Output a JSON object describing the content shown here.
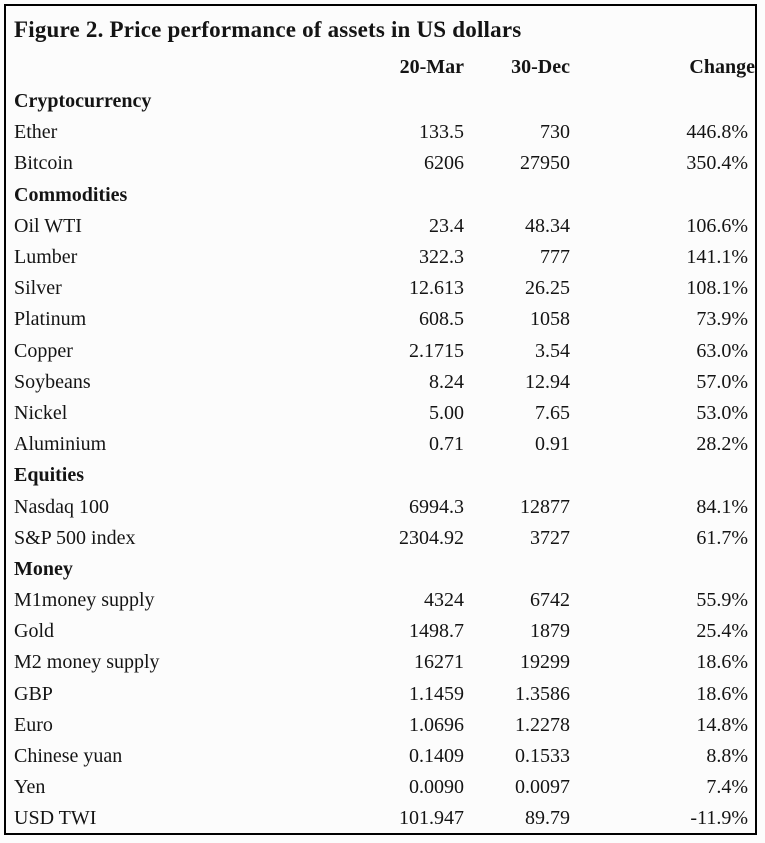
{
  "title": "Figure 2. Price performance of assets in US dollars",
  "columns": {
    "asset": "",
    "col1": "20-Mar",
    "col2": "30-Dec",
    "col3": "Change"
  },
  "sections": [
    {
      "name": "Cryptocurrency",
      "rows": [
        {
          "asset": "Ether",
          "mar20": "133.5",
          "dec30": "730",
          "change": "446.8%"
        },
        {
          "asset": "Bitcoin",
          "mar20": "6206",
          "dec30": "27950",
          "change": "350.4%"
        }
      ]
    },
    {
      "name": "Commodities",
      "rows": [
        {
          "asset": "Oil WTI",
          "mar20": "23.4",
          "dec30": "48.34",
          "change": "106.6%"
        },
        {
          "asset": "Lumber",
          "mar20": "322.3",
          "dec30": "777",
          "change": "141.1%"
        },
        {
          "asset": "Silver",
          "mar20": "12.613",
          "dec30": "26.25",
          "change": "108.1%"
        },
        {
          "asset": "Platinum",
          "mar20": "608.5",
          "dec30": "1058",
          "change": "73.9%"
        },
        {
          "asset": "Copper",
          "mar20": "2.1715",
          "dec30": "3.54",
          "change": "63.0%"
        },
        {
          "asset": "Soybeans",
          "mar20": "8.24",
          "dec30": "12.94",
          "change": "57.0%"
        },
        {
          "asset": "Nickel",
          "mar20": "5.00",
          "dec30": "7.65",
          "change": "53.0%"
        },
        {
          "asset": "Aluminium",
          "mar20": "0.71",
          "dec30": "0.91",
          "change": "28.2%"
        }
      ]
    },
    {
      "name": "Equities",
      "rows": [
        {
          "asset": "Nasdaq 100",
          "mar20": "6994.3",
          "dec30": "12877",
          "change": "84.1%"
        },
        {
          "asset": "S&P 500 index",
          "mar20": "2304.92",
          "dec30": "3727",
          "change": "61.7%"
        }
      ]
    },
    {
      "name": "Money",
      "rows": [
        {
          "asset": "M1money supply",
          "mar20": "4324",
          "dec30": "6742",
          "change": "55.9%"
        },
        {
          "asset": "Gold",
          "mar20": "1498.7",
          "dec30": "1879",
          "change": "25.4%"
        },
        {
          "asset": "M2 money supply",
          "mar20": "16271",
          "dec30": "19299",
          "change": "18.6%"
        },
        {
          "asset": "GBP",
          "mar20": "1.1459",
          "dec30": "1.3586",
          "change": "18.6%"
        },
        {
          "asset": "Euro",
          "mar20": "1.0696",
          "dec30": "1.2278",
          "change": "14.8%"
        },
        {
          "asset": "Chinese yuan",
          "mar20": "0.1409",
          "dec30": "0.1533",
          "change": "8.8%"
        },
        {
          "asset": "Yen",
          "mar20": "0.0090",
          "dec30": "0.0097",
          "change": "7.4%"
        },
        {
          "asset": "USD TWI",
          "mar20": "101.947",
          "dec30": "89.79",
          "change": "-11.9%"
        }
      ]
    }
  ],
  "colors": {
    "text": "#141414",
    "border": "#000000",
    "background": "#fcfcfc"
  }
}
